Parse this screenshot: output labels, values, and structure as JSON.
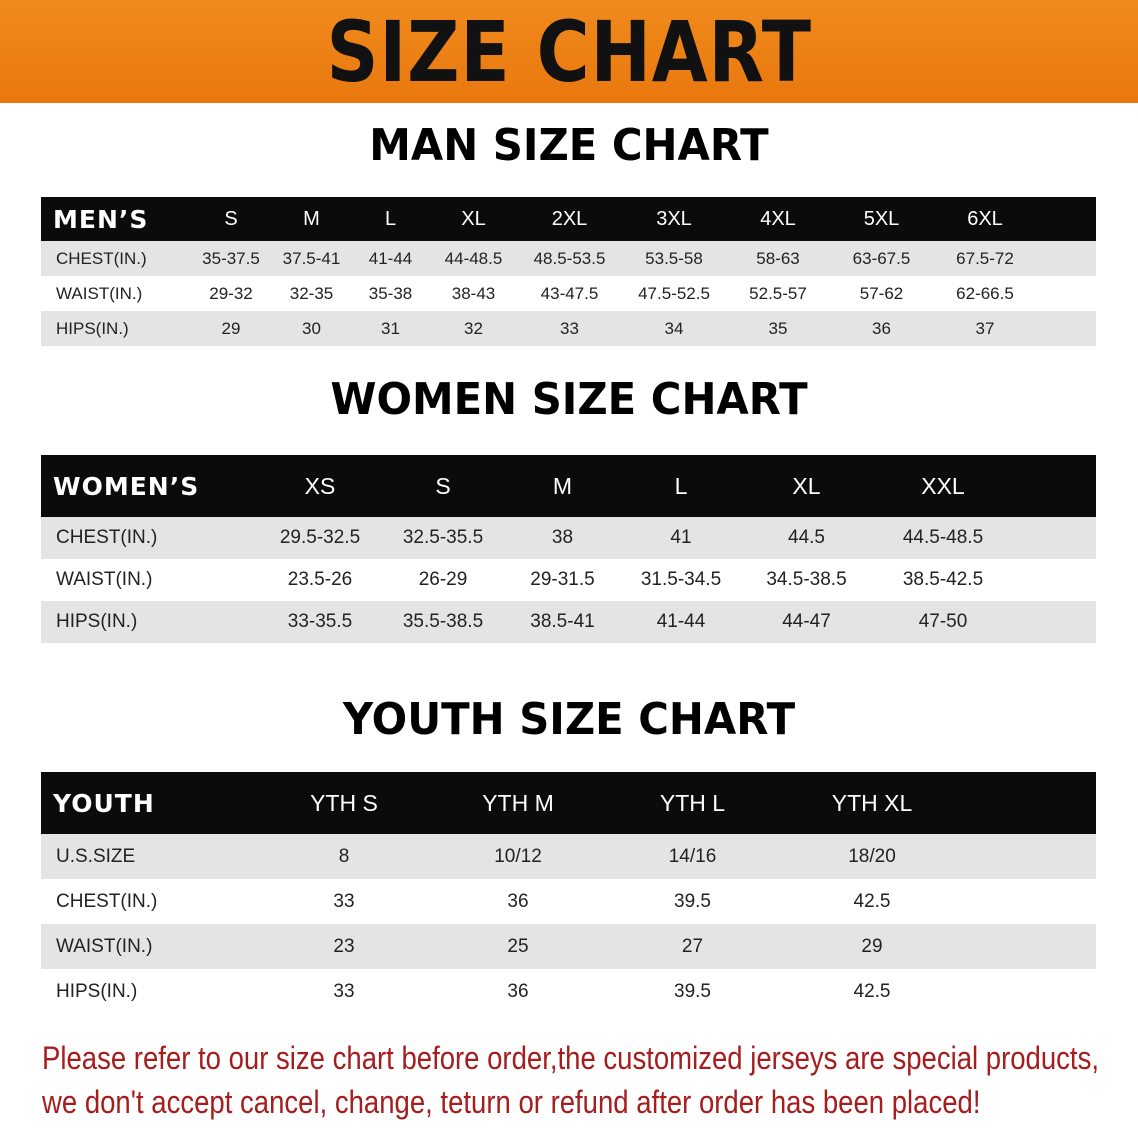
{
  "banner_title": "SIZE CHART",
  "men": {
    "title": "MAN SIZE CHART",
    "header_label": "MEN’S",
    "sizes": [
      "S",
      "M",
      "L",
      "XL",
      "2XL",
      "3XL",
      "4XL",
      "5XL",
      "6XL"
    ],
    "rows": [
      {
        "label": "CHEST(IN.)",
        "values": [
          "35-37.5",
          "37.5-41",
          "41-44",
          "44-48.5",
          "48.5-53.5",
          "53.5-58",
          "58-63",
          "63-67.5",
          "67.5-72"
        ]
      },
      {
        "label": "WAIST(IN.)",
        "values": [
          "29-32",
          "32-35",
          "35-38",
          "38-43",
          "43-47.5",
          "47.5-52.5",
          "52.5-57",
          "57-62",
          "62-66.5"
        ]
      },
      {
        "label": "HIPS(IN.)",
        "values": [
          "29",
          "30",
          "31",
          "32",
          "33",
          "34",
          "35",
          "36",
          "37"
        ]
      }
    ]
  },
  "women": {
    "title": "WOMEN SIZE CHART",
    "header_label": "WOMEN’S",
    "sizes": [
      "XS",
      "S",
      "M",
      "L",
      "XL",
      "XXL"
    ],
    "rows": [
      {
        "label": "CHEST(IN.)",
        "values": [
          "29.5-32.5",
          "32.5-35.5",
          "38",
          "41",
          "44.5",
          "44.5-48.5"
        ]
      },
      {
        "label": "WAIST(IN.)",
        "values": [
          "23.5-26",
          "26-29",
          "29-31.5",
          "31.5-34.5",
          "34.5-38.5",
          "38.5-42.5"
        ]
      },
      {
        "label": "HIPS(IN.)",
        "values": [
          "33-35.5",
          "35.5-38.5",
          "38.5-41",
          "41-44",
          "44-47",
          "47-50"
        ]
      }
    ]
  },
  "youth": {
    "title": "YOUTH SIZE CHART",
    "header_label": "YOUTH",
    "sizes": [
      "YTH S",
      "YTH M",
      "YTH L",
      "YTH XL"
    ],
    "rows": [
      {
        "label": "U.S.SIZE",
        "values": [
          "8",
          "10/12",
          "14/16",
          "18/20"
        ]
      },
      {
        "label": "CHEST(IN.)",
        "values": [
          "33",
          "36",
          "39.5",
          "42.5"
        ]
      },
      {
        "label": "WAIST(IN.)",
        "values": [
          "23",
          "25",
          "27",
          "29"
        ]
      },
      {
        "label": "HIPS(IN.)",
        "values": [
          "33",
          "36",
          "39.5",
          "42.5"
        ]
      }
    ]
  },
  "notice": {
    "line1": "Please refer to our size chart before order,the customized jerseys are special products,",
    "line2": "we don't accept cancel, change, teturn or refund after order has been placed!"
  },
  "colors": {
    "banner": "#ec7f14",
    "header": "#0b0b0b",
    "stripe": "#e4e4e4",
    "notice": "#a51d1d"
  }
}
